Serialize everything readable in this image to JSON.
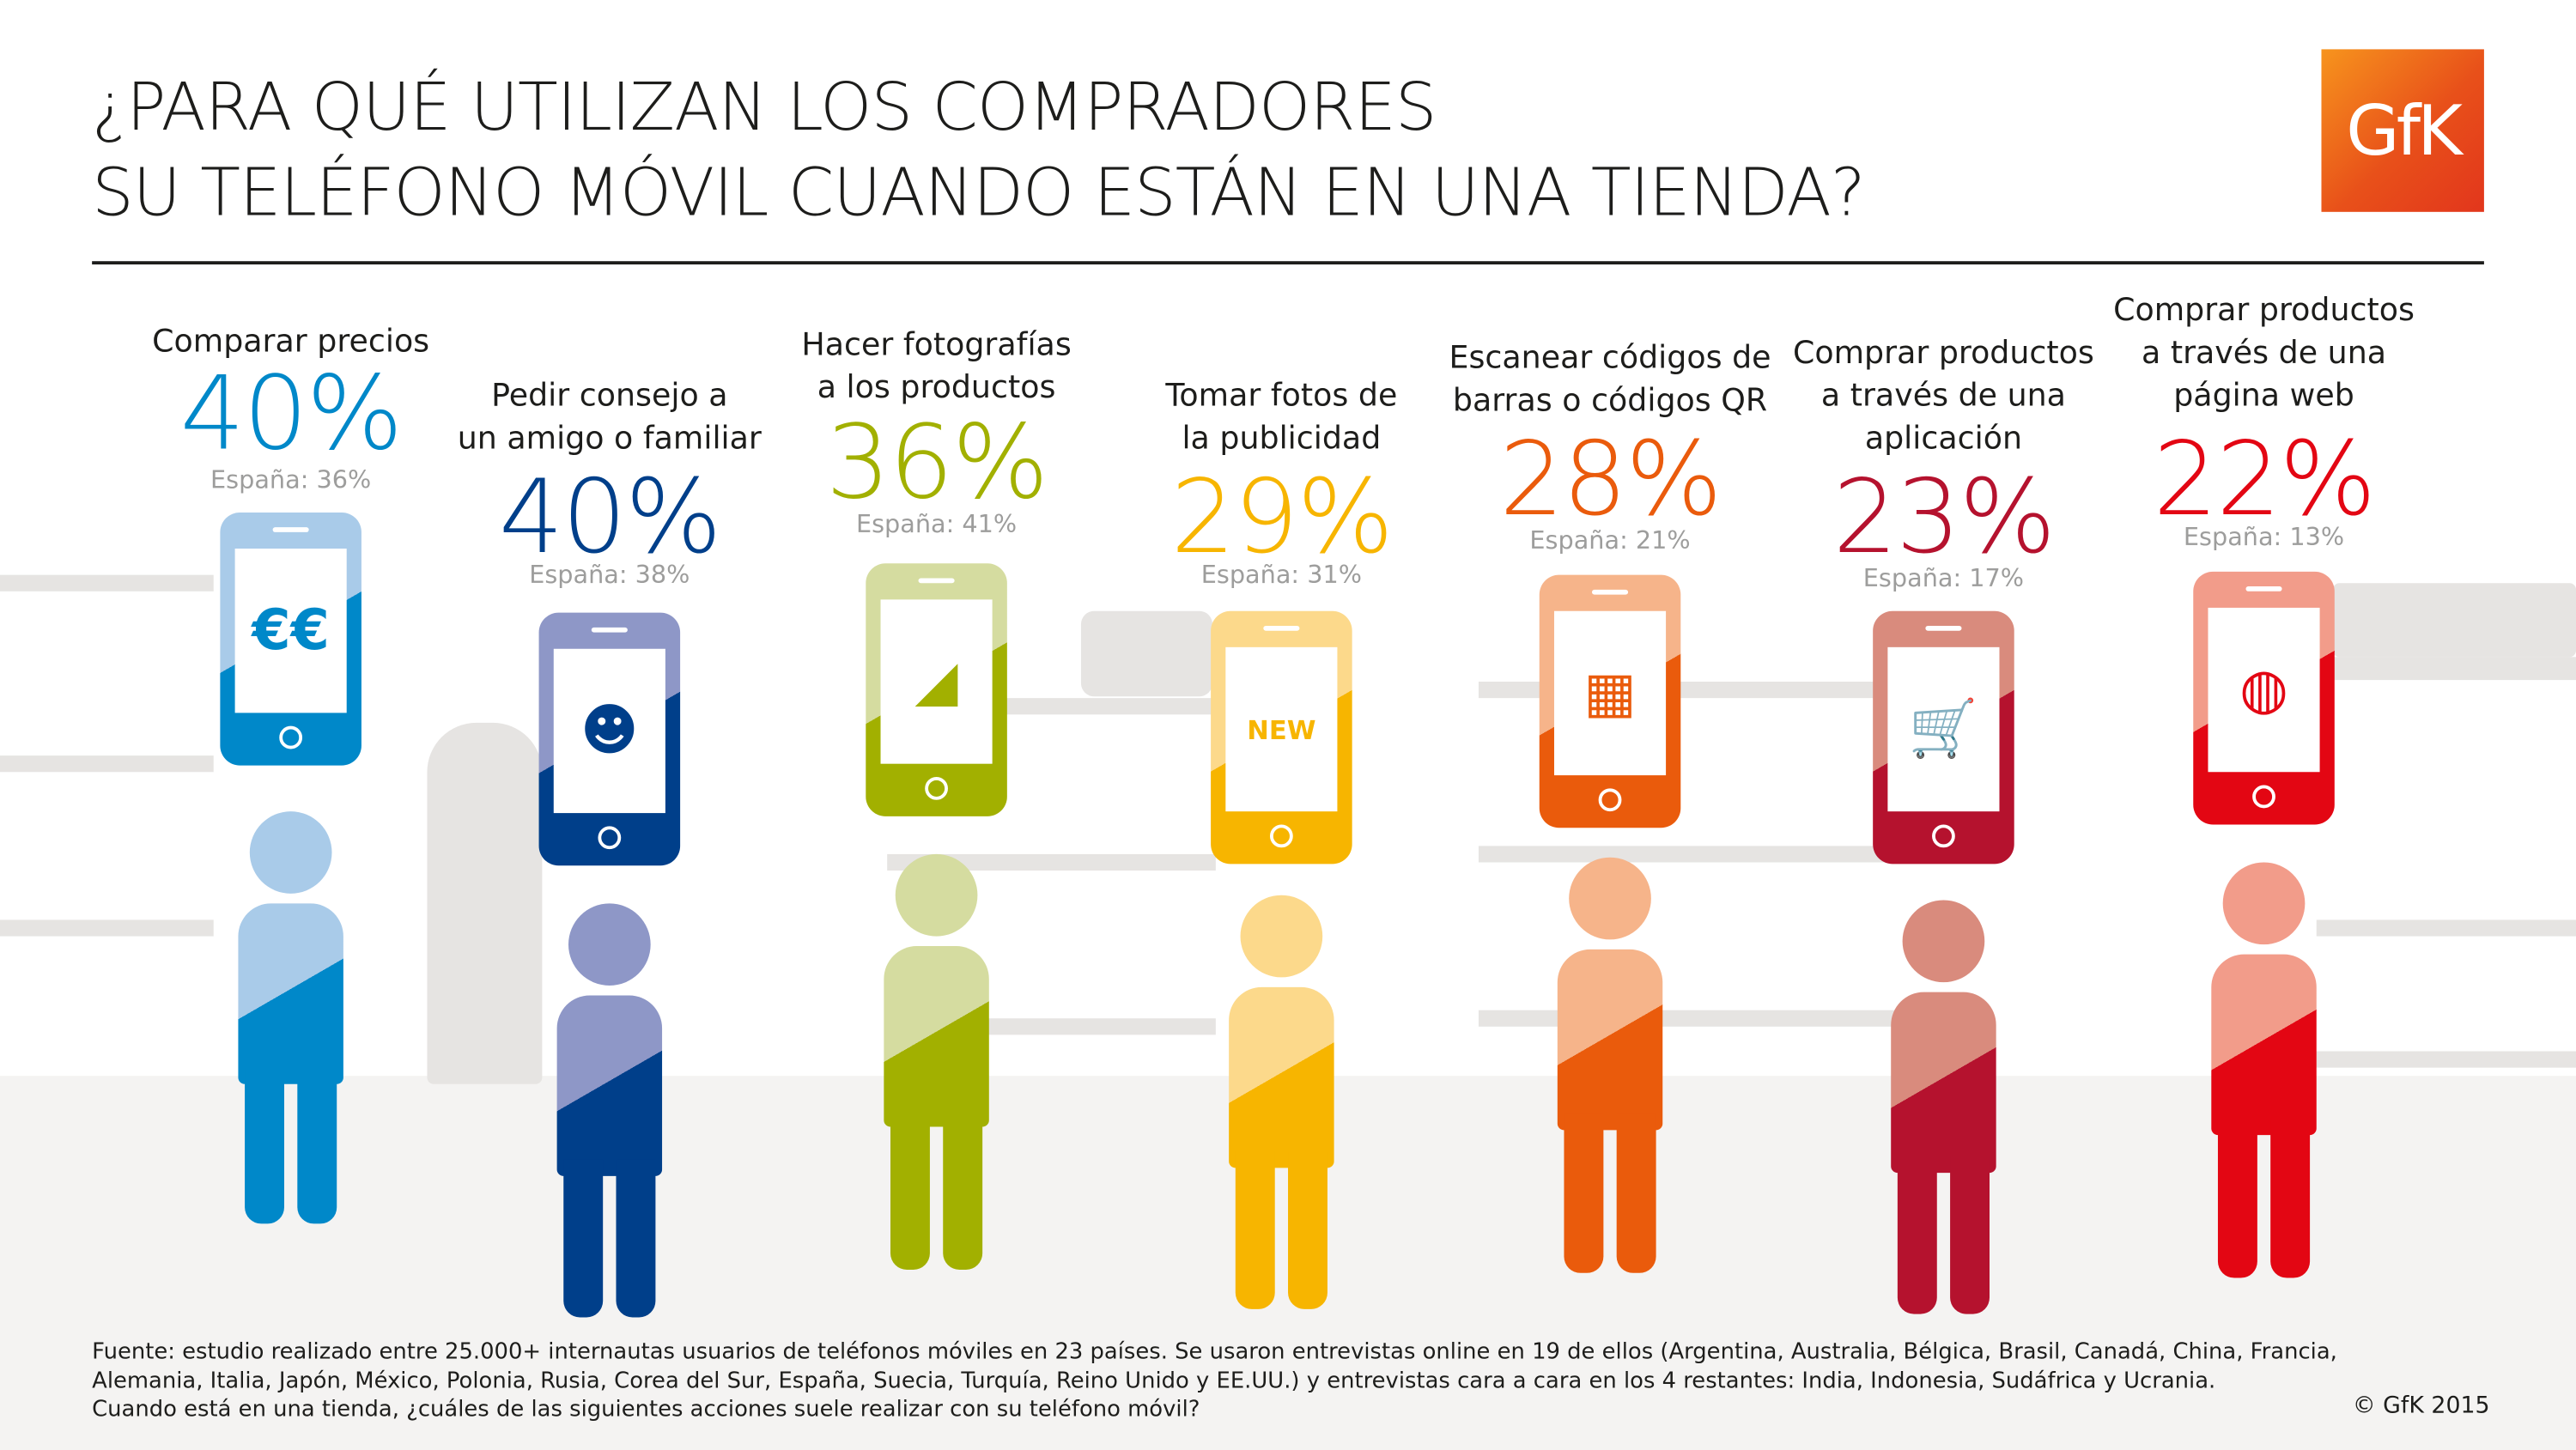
{
  "title": {
    "line1": "¿PARA QUÉ UTILIZAN LOS COMPRADORES",
    "line2": "SU TELÉFONO MÓVIL CUANDO ESTÁN EN UNA TIENDA?"
  },
  "logo_text": "GfK",
  "columns": [
    {
      "label": "Comparar precios",
      "percent": "40%",
      "spain": "España: 36%",
      "color": "#0088c9",
      "light": "#a9cbe9",
      "icon": "euro-icon",
      "glyph": "€€"
    },
    {
      "label": "Pedir consejo a\nun amigo o familiar",
      "percent": "40%",
      "spain": "España: 38%",
      "color": "#003f8a",
      "light": "#8e97c7",
      "icon": "woman-icon",
      "glyph": "☻"
    },
    {
      "label": "Hacer fotografías\na los productos",
      "percent": "36%",
      "spain": "España: 41%",
      "color": "#a2b000",
      "light": "#d5dca0",
      "icon": "high-heel-shoe-icon",
      "glyph": "◢"
    },
    {
      "label": "Tomar fotos de\nla publicidad",
      "percent": "29%",
      "spain": "España: 31%",
      "color": "#f7b500",
      "light": "#fcd98b",
      "icon": "new-badge-icon",
      "glyph": "NEW"
    },
    {
      "label": "Escanear códigos de\nbarras o códigos QR",
      "percent": "28%",
      "spain": "España: 21%",
      "color": "#ea5b0c",
      "light": "#f6b48a",
      "icon": "qr-code-icon",
      "glyph": "▦"
    },
    {
      "label": "Comprar productos\na través de una\naplicación",
      "percent": "23%",
      "spain": "España: 17%",
      "color": "#b5122e",
      "light": "#d98b7d",
      "icon": "shopping-cart-icon",
      "glyph": "🛒"
    },
    {
      "label": "Comprar productos\na través de una\npágina web",
      "percent": "22%",
      "spain": "España: 13%",
      "color": "#e30613",
      "light": "#f29c8a",
      "icon": "globe-cart-icon",
      "glyph": "◍"
    }
  ],
  "footer": {
    "line1": "Fuente: estudio realizado entre 25.000+ internautas usuarios de teléfonos móviles en 23 países. Se usaron entrevistas online en 19 de ellos (Argentina, Australia, Bélgica, Brasil, Canadá, China, Francia,",
    "line2": "Alemania, Italia, Japón, México, Polonia, Rusia, Corea del Sur, España, Suecia, Turquía, Reino Unido y EE.UU.) y entrevistas cara a cara en los 4 restantes: India, Indonesia, Sudáfrica y Ucrania.",
    "line3": "Cuando está en una tienda, ¿cuáles de las siguientes acciones suele realizar con su teléfono móvil?",
    "copyright": "© GfK 2015"
  }
}
